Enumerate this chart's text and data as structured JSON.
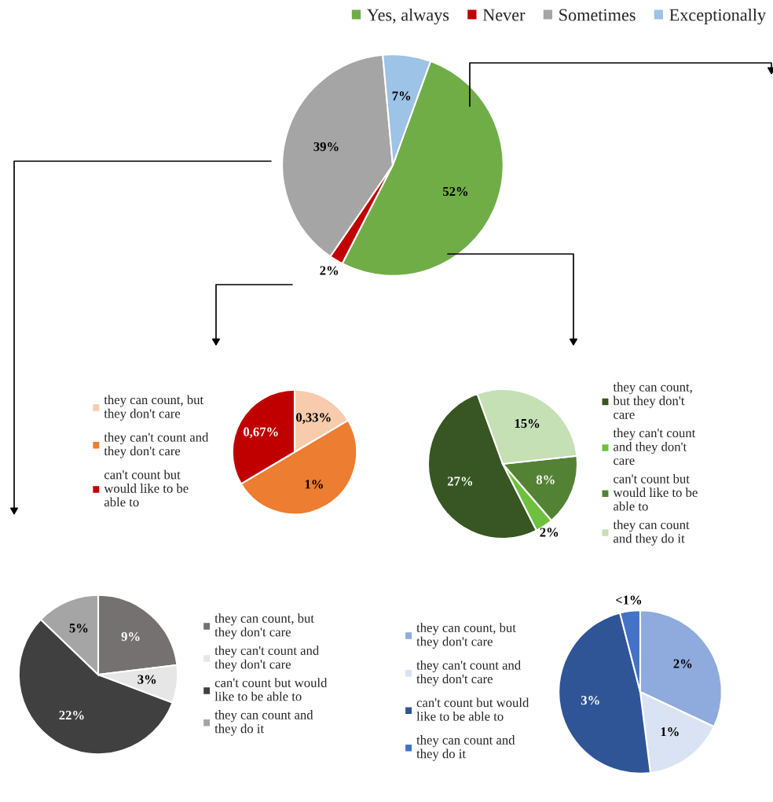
{
  "chart_data": [
    {
      "type": "pie",
      "categories": [
        "Yes, always",
        "Never",
        "Sometimes",
        "Exceptionally"
      ],
      "values": [
        52,
        2,
        39,
        7
      ],
      "colors": [
        "#70ad47",
        "#c00000",
        "#a5a5a5",
        "#9dc3e6"
      ],
      "value_labels": [
        "52%",
        "2%",
        "39%",
        "7%"
      ],
      "legend": "top"
    },
    {
      "type": "pie",
      "categories": [
        "they can count, but\nthey don't care",
        "they can't count and\nthey don't care",
        "can't count but\nwould like to be\nable to"
      ],
      "values": [
        0.33,
        1,
        0.67
      ],
      "colors": [
        "#f8cbad",
        "#ed7d31",
        "#c00000"
      ],
      "value_labels": [
        "0,33%",
        "1%",
        "0,67%"
      ],
      "legend": "left"
    },
    {
      "type": "pie",
      "categories": [
        "they can count,\nbut they don't\ncare",
        "they can't count\nand they don't\ncare",
        "can't count but\nwould like to be\nable to",
        "they can count\nand they do it"
      ],
      "values": [
        27,
        2,
        8,
        15
      ],
      "colors": [
        "#375623",
        "#70c040",
        "#548235",
        "#c5e0b4"
      ],
      "value_labels": [
        "27%",
        "2%",
        "8%",
        "15%"
      ],
      "legend": "right"
    },
    {
      "type": "pie",
      "categories": [
        "they can count, but\nthey don't care",
        "they can't count and\nthey don't care",
        "can't count but would\nlike to be able to",
        "they can count and\nthey do it"
      ],
      "values": [
        9,
        3,
        22,
        5
      ],
      "colors": [
        "#767171",
        "#e7e6e6",
        "#404040",
        "#a5a5a5"
      ],
      "value_labels": [
        "9%",
        "3%",
        "22%",
        "5%"
      ],
      "legend": "right"
    },
    {
      "type": "pie",
      "categories": [
        "they can count, but\nthey don't care",
        "they can't count and\nthey don't care",
        "can't count but would\nlike to be able to",
        "they can count and\nthey do it"
      ],
      "values": [
        2,
        1,
        3,
        0.25
      ],
      "colors": [
        "#8faadc",
        "#dae3f3",
        "#2f5597",
        "#4472c4"
      ],
      "value_labels": [
        "2%",
        "1%",
        "3%",
        "<1%"
      ],
      "legend": "left"
    }
  ]
}
